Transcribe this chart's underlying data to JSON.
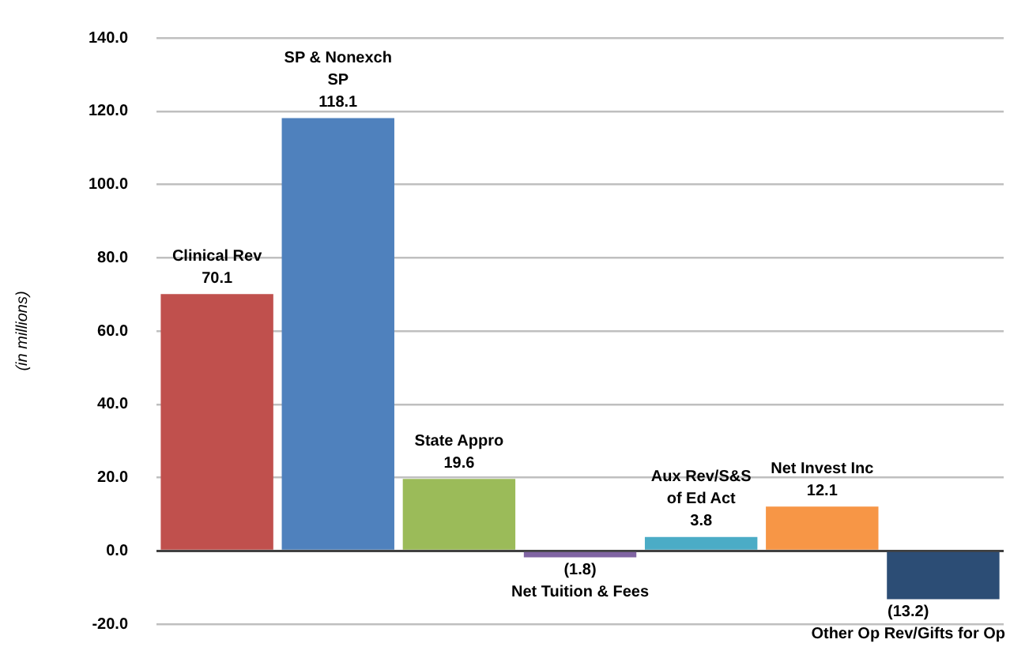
{
  "chart_data": {
    "type": "bar",
    "ylabel": "(in millions)",
    "categories": [
      "Clinical Rev",
      "SP & Nonexch SP",
      "State Appro",
      "Net Tuition & Fees",
      "Aux Rev/S&S of Ed Act",
      "Net Invest Inc",
      "Other Op Rev/Gifts for Op"
    ],
    "values": [
      70.1,
      118.1,
      19.6,
      -1.8,
      3.8,
      12.1,
      -13.2
    ],
    "colors": [
      "#c0504d",
      "#4f81bd",
      "#9bbb59",
      "#8064a2",
      "#4bacc6",
      "#f79646",
      "#2c4d75"
    ],
    "value_labels": [
      "70.1",
      "118.1",
      "19.6",
      "(1.8)",
      "3.8",
      "12.1",
      "(13.2)"
    ],
    "ylim": [
      -20,
      140
    ],
    "yticks": [
      {
        "value": -20,
        "label": "-20.0"
      },
      {
        "value": 0,
        "label": "0.0"
      },
      {
        "value": 20,
        "label": "20.0"
      },
      {
        "value": 40,
        "label": "40.0"
      },
      {
        "value": 60,
        "label": "60.0"
      },
      {
        "value": 80,
        "label": "80.0"
      },
      {
        "value": 100,
        "label": "100.0"
      },
      {
        "value": 120,
        "label": "120.0"
      },
      {
        "value": 140,
        "label": "140.0"
      }
    ],
    "grid": "y",
    "legend": false,
    "tick_labels": "y"
  }
}
